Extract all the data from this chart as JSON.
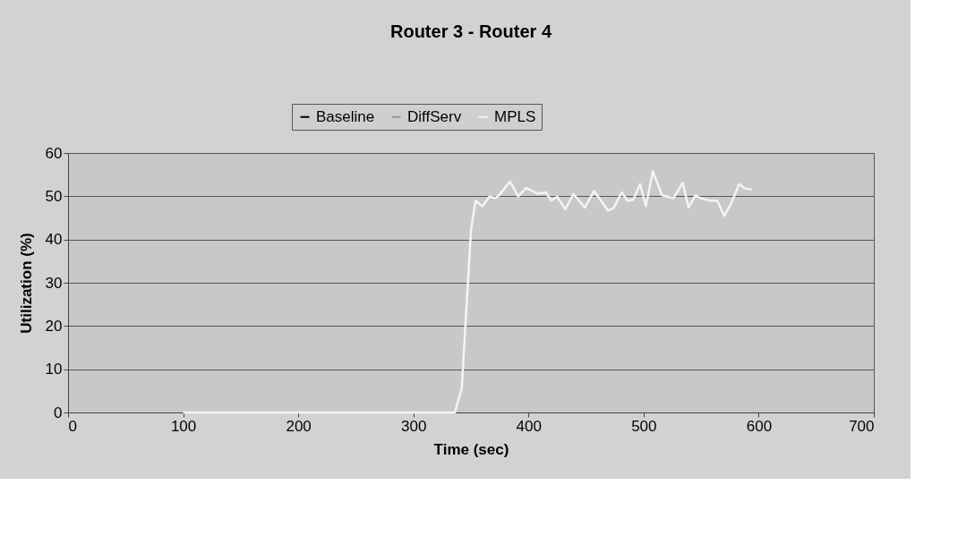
{
  "chart_data": {
    "type": "line",
    "title": "Router 3 - Router 4",
    "xlabel": "Time (sec)",
    "ylabel": "Utilization (%)",
    "xlim": [
      0,
      700
    ],
    "xticks": [
      0,
      100,
      200,
      300,
      400,
      500,
      600,
      700
    ],
    "ylim": [
      0,
      60
    ],
    "yticks": [
      0,
      10,
      20,
      30,
      40,
      50,
      60
    ],
    "grid": "y",
    "legend": "top",
    "line_style": "solid",
    "marker": "none",
    "series": [
      {
        "name": "Baseline",
        "color": "#000000"
      },
      {
        "name": "DiffServ",
        "color": "#999999"
      },
      {
        "name": "MPLS",
        "color": "#f4f4f4",
        "x": [
          100,
          336,
          342,
          350,
          354,
          360,
          366,
          371,
          374,
          384,
          391,
          398,
          408,
          415,
          420,
          425,
          432,
          439,
          449,
          457,
          469,
          474,
          481,
          486,
          491,
          497,
          502,
          508,
          516,
          526,
          534,
          539,
          545,
          549,
          557,
          564,
          570,
          576,
          583,
          588,
          594
        ],
        "values": [
          0,
          0,
          5.5,
          42,
          49,
          47.7,
          49.9,
          49.6,
          50.1,
          53.4,
          50,
          51.9,
          50.6,
          50.9,
          49,
          49.9,
          47,
          50.5,
          47.4,
          51.2,
          46.7,
          47.3,
          50.9,
          49,
          49.2,
          52.8,
          47.7,
          55.8,
          50.2,
          49.6,
          53.1,
          47.4,
          50.2,
          49.6,
          49,
          49,
          45.5,
          48.3,
          52.8,
          51.8,
          51.5
        ]
      }
    ]
  }
}
